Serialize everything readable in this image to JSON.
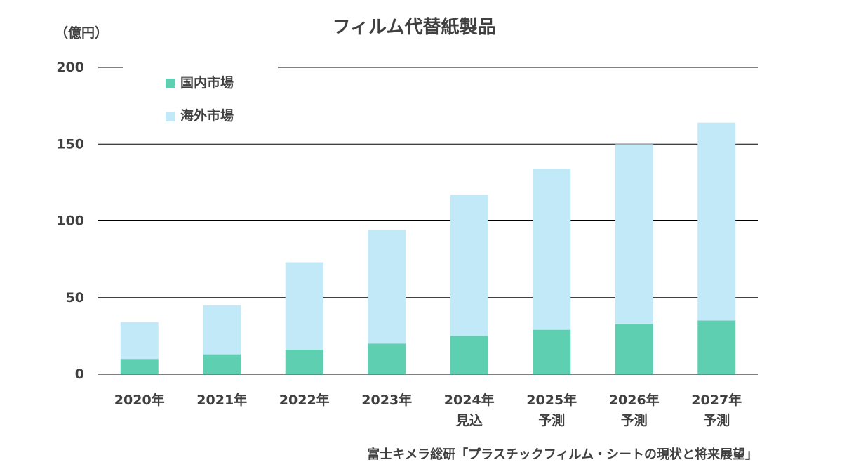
{
  "chart_data": {
    "type": "bar",
    "stacked": true,
    "title": "フィルム代替紙製品",
    "unit": "（億円）",
    "source": "富士キメラ総研「プラスチックフィルム・シートの現状と将来展望」",
    "categories": [
      [
        "2020年"
      ],
      [
        "2021年"
      ],
      [
        "2022年"
      ],
      [
        "2023年"
      ],
      [
        "2024年",
        "見込"
      ],
      [
        "2025年",
        "予測"
      ],
      [
        "2026年",
        "予測"
      ],
      [
        "2027年",
        "予測"
      ]
    ],
    "series": [
      {
        "name": "国内市場",
        "color": "#5ecfb0",
        "values": [
          10,
          13,
          16,
          20,
          25,
          29,
          33,
          35
        ]
      },
      {
        "name": "海外市場",
        "color": "#c2e9f8",
        "values": [
          24,
          32,
          57,
          74,
          92,
          105,
          117,
          129
        ]
      }
    ],
    "yticks": [
      0,
      50,
      100,
      150,
      200
    ],
    "ylim": [
      0,
      200
    ],
    "grid": true,
    "legend_position": "top-left"
  }
}
